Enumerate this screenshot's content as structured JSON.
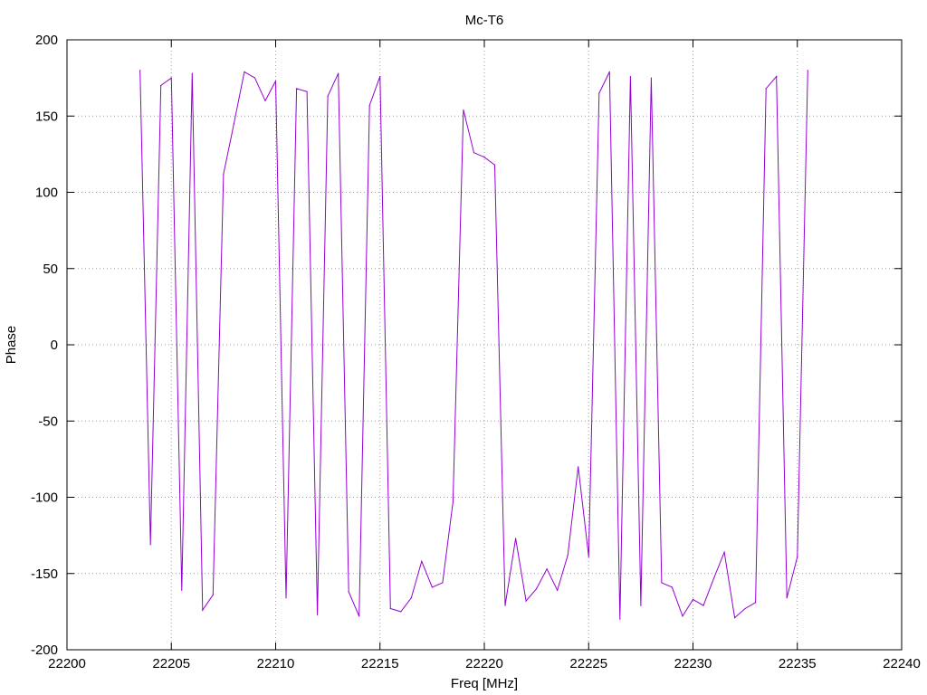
{
  "chart_data": {
    "type": "line",
    "title": "Mc-T6",
    "xlabel": "Freq [MHz]",
    "ylabel": "Phase",
    "xlim": [
      22200,
      22240
    ],
    "ylim": [
      -200,
      200
    ],
    "grid": true,
    "x_ticks": [
      22200,
      22205,
      22210,
      22215,
      22220,
      22225,
      22230,
      22235,
      22240
    ],
    "y_ticks": [
      -200,
      -150,
      -100,
      -50,
      0,
      50,
      100,
      150,
      200
    ],
    "line_color": "#9400d3",
    "series": [
      {
        "x": [
          22203.5,
          22204.0,
          22204.5,
          22205.0,
          22205.5,
          22206.0,
          22206.5,
          22207.0,
          22207.5,
          22208.0,
          22208.5,
          22209.0,
          22209.5,
          22210.0,
          22210.5,
          22211.0,
          22211.5,
          22212.0,
          22212.5,
          22213.0,
          22213.5,
          22214.0,
          22214.5,
          22215.0,
          22215.5,
          22216.0,
          22216.5,
          22217.0,
          22217.5,
          22218.0,
          22218.5,
          22219.0,
          22219.5,
          22220.0,
          22220.5,
          22221.0,
          22221.5,
          22222.0,
          22222.5,
          22223.0,
          22223.5,
          22224.0,
          22224.5,
          22225.0,
          22225.5,
          22226.0,
          22226.5,
          22227.0,
          22227.5,
          22228.0,
          22228.5,
          22229.0,
          22229.5,
          22230.0,
          22230.5,
          22231.0,
          22231.5,
          22232.0,
          22232.5,
          22233.0,
          22233.5,
          22234.0,
          22234.5,
          22235.0,
          22235.5
        ],
        "y": [
          180,
          -131,
          170,
          175,
          -161,
          178,
          -174,
          -164,
          112,
          145,
          179,
          175,
          160,
          173,
          -166,
          168,
          166,
          -177,
          163,
          178,
          -162,
          -178,
          157,
          176,
          -173,
          -175,
          -166,
          -142,
          -159,
          -156,
          -103,
          154,
          126,
          123,
          118,
          -171,
          -127,
          -168,
          -160,
          -147,
          -161,
          -138,
          -80,
          -139,
          165,
          179,
          -180,
          176,
          -171,
          175,
          -156,
          -159,
          -178,
          -167,
          -171,
          -153,
          -136,
          -179,
          -173,
          -169,
          168,
          176,
          -166,
          -139,
          180
        ]
      }
    ]
  }
}
